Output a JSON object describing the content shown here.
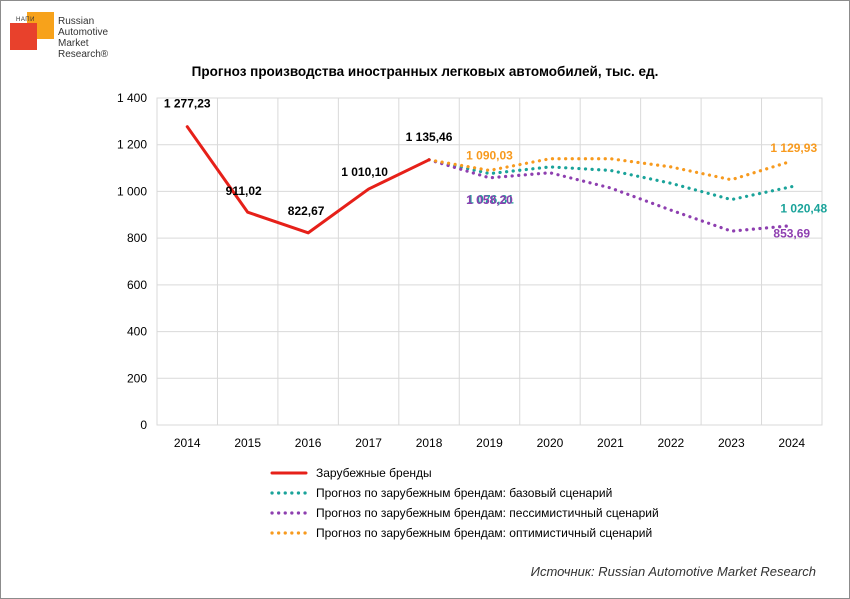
{
  "logo": {
    "nami": "НАПИ",
    "line1": "Russian",
    "line2": "Automotive",
    "line3": "Market",
    "line4": "Research®"
  },
  "chart_data": {
    "type": "line",
    "title": "Прогноз производства иностранных легковых автомобилей, тыс. ед.",
    "xlabel": "",
    "ylabel": "",
    "categories": [
      "2014",
      "2015",
      "2016",
      "2017",
      "2018",
      "2019",
      "2020",
      "2021",
      "2022",
      "2023",
      "2024"
    ],
    "ylim": [
      0,
      1400
    ],
    "yticks": [
      0,
      200,
      400,
      600,
      800,
      1000,
      1200,
      1400
    ],
    "ytick_labels": [
      "0",
      "200",
      "400",
      "600",
      "800",
      "1 000",
      "1 200",
      "1 400"
    ],
    "grid": true,
    "series": [
      {
        "name": "Зарубежные бренды",
        "style": "solid",
        "color": "#e62019",
        "values": [
          1277.23,
          911.02,
          822.67,
          1010.1,
          1135.46,
          null,
          null,
          null,
          null,
          null,
          null
        ]
      },
      {
        "name": "Прогноз по зарубежным брендам: базовый сценарий",
        "style": "dotted",
        "color": "#1aa39a",
        "values": [
          null,
          null,
          null,
          null,
          1135.46,
          1076.31,
          1105,
          1090,
          1035,
          965,
          1020.48
        ]
      },
      {
        "name": "Прогноз по зарубежным брендам: пессимистичный сценарий",
        "style": "dotted",
        "color": "#8e3fb0",
        "values": [
          null,
          null,
          null,
          null,
          1135.46,
          1058.2,
          1080,
          1015,
          920,
          830,
          853.69
        ]
      },
      {
        "name": "Прогноз по зарубежным брендам: оптимистичный сценарий",
        "style": "dotted",
        "color": "#f79a1e",
        "values": [
          null,
          null,
          null,
          null,
          1135.46,
          1090.03,
          1140,
          1140,
          1105,
          1050,
          1129.93
        ]
      }
    ],
    "data_labels": [
      {
        "text": "1 277,23",
        "series": 0,
        "index": 0,
        "color": "#000000"
      },
      {
        "text": "911,02",
        "series": 0,
        "index": 1,
        "color": "#000000"
      },
      {
        "text": "822,67",
        "series": 0,
        "index": 2,
        "color": "#000000"
      },
      {
        "text": "1 010,10",
        "series": 0,
        "index": 3,
        "color": "#000000"
      },
      {
        "text": "1 135,46",
        "series": 0,
        "index": 4,
        "color": "#000000"
      },
      {
        "text": "1 090,03",
        "series": 3,
        "index": 5,
        "color": "#f79a1e"
      },
      {
        "text": "1 076,31",
        "series": 1,
        "index": 5,
        "color": "#1aa39a"
      },
      {
        "text": "1 058,20",
        "series": 2,
        "index": 5,
        "color": "#8e3fb0"
      },
      {
        "text": "1 129,93",
        "series": 3,
        "index": 10,
        "color": "#f79a1e"
      },
      {
        "text": "1 020,48",
        "series": 1,
        "index": 10,
        "color": "#1aa39a"
      },
      {
        "text": "853,69",
        "series": 2,
        "index": 10,
        "color": "#8e3fb0"
      }
    ],
    "legend_position": "bottom"
  },
  "source": "Источник: Russian Automotive Market Research"
}
